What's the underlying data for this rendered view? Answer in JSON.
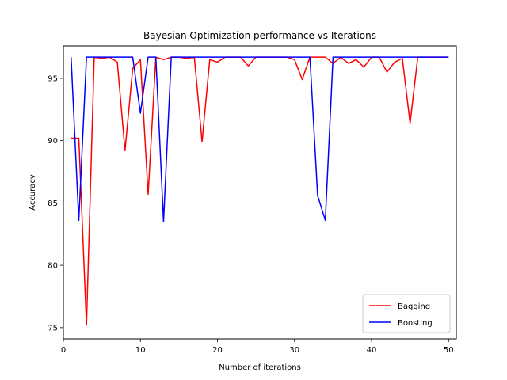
{
  "chart_data": {
    "type": "line",
    "title": "Bayesian Optimization performance vs Iterations",
    "xlabel": "Number of iterations",
    "ylabel": "Accuracy",
    "xlim": [
      0,
      51
    ],
    "ylim": [
      74.1,
      97.6
    ],
    "xticks": [
      0,
      10,
      20,
      30,
      40,
      50
    ],
    "yticks": [
      75,
      80,
      85,
      90,
      95
    ],
    "grid": false,
    "legend_position": "lower-right",
    "x": [
      1,
      2,
      3,
      4,
      5,
      6,
      7,
      8,
      9,
      10,
      11,
      12,
      13,
      14,
      15,
      16,
      17,
      18,
      19,
      20,
      21,
      22,
      23,
      24,
      25,
      26,
      27,
      28,
      29,
      30,
      31,
      32,
      33,
      34,
      35,
      36,
      37,
      38,
      39,
      40,
      41,
      42,
      43,
      44,
      45,
      46,
      47,
      48,
      49,
      50
    ],
    "series": [
      {
        "name": "Bagging",
        "color": "#ff0000",
        "values": [
          90.2,
          90.2,
          75.2,
          96.7,
          96.6,
          96.7,
          96.3,
          89.2,
          95.8,
          96.5,
          85.7,
          96.7,
          96.5,
          96.7,
          96.7,
          96.6,
          96.7,
          89.9,
          96.5,
          96.3,
          96.7,
          96.7,
          96.7,
          96.0,
          96.7,
          96.7,
          96.7,
          96.7,
          96.7,
          96.5,
          94.9,
          96.7,
          96.7,
          96.7,
          96.2,
          96.7,
          96.2,
          96.5,
          95.9,
          96.7,
          96.7,
          95.5,
          96.3,
          96.6,
          91.4,
          96.7,
          96.7,
          96.7,
          96.7,
          96.7
        ]
      },
      {
        "name": "Boosting",
        "color": "#0000ff",
        "values": [
          96.7,
          83.6,
          96.7,
          96.7,
          96.7,
          96.7,
          96.7,
          96.7,
          96.7,
          92.2,
          96.7,
          96.7,
          83.5,
          96.7,
          96.7,
          96.7,
          96.7,
          96.7,
          96.7,
          96.7,
          96.7,
          96.7,
          96.7,
          96.7,
          96.7,
          96.7,
          96.7,
          96.7,
          96.7,
          96.7,
          96.7,
          96.7,
          85.6,
          83.6,
          96.7,
          96.7,
          96.7,
          96.7,
          96.7,
          96.7,
          96.7,
          96.7,
          96.7,
          96.7,
          96.7,
          96.7,
          96.7,
          96.7,
          96.7,
          96.7
        ]
      }
    ]
  }
}
